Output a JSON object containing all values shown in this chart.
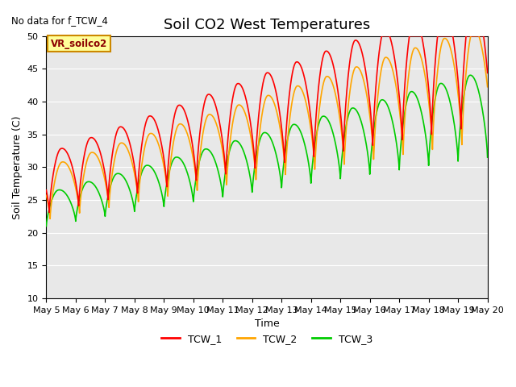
{
  "title": "Soil CO2 West Temperatures",
  "no_data_text": "No data for f_TCW_4",
  "annotation_text": "VR_soilco2",
  "xlabel": "Time",
  "ylabel": "Soil Temperature (C)",
  "ylim": [
    10,
    50
  ],
  "xlim_days": [
    0,
    15
  ],
  "x_tick_labels": [
    "May 5",
    "May 6",
    "May 7",
    "May 8",
    "May 9",
    "May 10",
    "May 11",
    "May 12",
    "May 13",
    "May 14",
    "May 15",
    "May 16",
    "May 17",
    "May 18",
    "May 19",
    "May 20"
  ],
  "line_colors": [
    "#ff0000",
    "#ffa500",
    "#00cc00"
  ],
  "line_labels": [
    "TCW_1",
    "TCW_2",
    "TCW_3"
  ],
  "line_width": 1.2,
  "bg_color": "#e8e8e8",
  "fig_bg_color": "#ffffff",
  "title_fontsize": 13,
  "axis_label_fontsize": 9,
  "tick_fontsize": 8,
  "legend_fontsize": 9
}
